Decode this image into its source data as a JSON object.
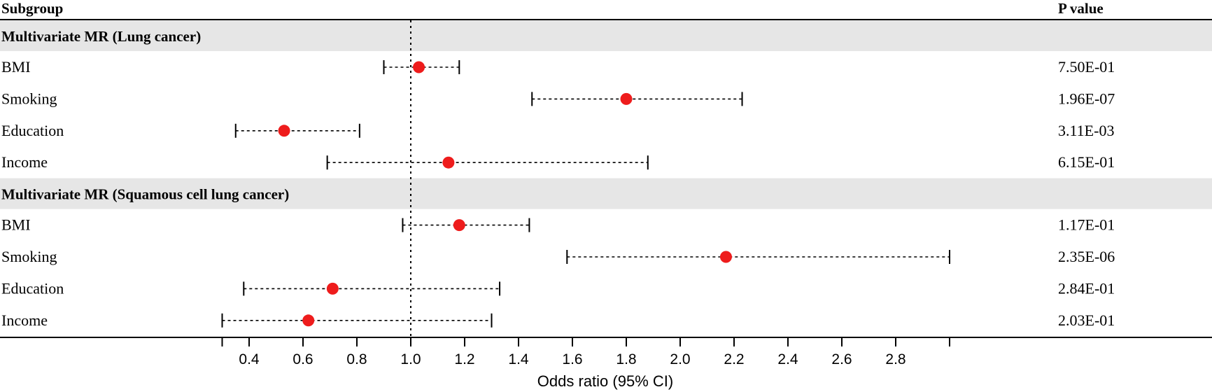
{
  "header": {
    "subgroup_label": "Subgroup",
    "pvalue_label": "P value"
  },
  "chart_data": {
    "type": "forest",
    "xlabel": "Odds ratio (95% CI)",
    "reference_line": 1.0,
    "xlim": [
      0.3,
      3.0
    ],
    "ticks": [
      0.4,
      0.6,
      0.8,
      1.0,
      1.2,
      1.4,
      1.6,
      1.8,
      2.0,
      2.2,
      2.4,
      2.6,
      2.8
    ],
    "tick_labels": [
      "0.4",
      "0.6",
      "0.8",
      "1.0",
      "1.2",
      "1.4",
      "1.6",
      "1.8",
      "2.0",
      "2.2",
      "2.4",
      "2.6",
      "2.8"
    ],
    "colors": {
      "point": "#ee1c1c",
      "group_band": "#e6e6e6"
    },
    "groups": [
      {
        "title": "Multivariate MR (Lung cancer)",
        "rows": [
          {
            "label": "BMI",
            "or": 1.03,
            "lower": 0.9,
            "upper": 1.18,
            "p": "7.50E-01"
          },
          {
            "label": "Smoking",
            "or": 1.8,
            "lower": 1.45,
            "upper": 2.23,
            "p": "1.96E-07"
          },
          {
            "label": "Education",
            "or": 0.53,
            "lower": 0.35,
            "upper": 0.81,
            "p": "3.11E-03"
          },
          {
            "label": "Income",
            "or": 1.14,
            "lower": 0.69,
            "upper": 1.88,
            "p": "6.15E-01"
          }
        ]
      },
      {
        "title": "Multivariate MR (Squamous cell lung cancer)",
        "rows": [
          {
            "label": "BMI",
            "or": 1.18,
            "lower": 0.97,
            "upper": 1.44,
            "p": "1.17E-01"
          },
          {
            "label": "Smoking",
            "or": 2.17,
            "lower": 1.58,
            "upper": 3.0,
            "p": "2.35E-06"
          },
          {
            "label": "Education",
            "or": 0.71,
            "lower": 0.38,
            "upper": 1.33,
            "p": "2.84E-01"
          },
          {
            "label": "Income",
            "or": 0.62,
            "lower": 0.3,
            "upper": 1.3,
            "p": "2.03E-01"
          }
        ]
      }
    ]
  }
}
